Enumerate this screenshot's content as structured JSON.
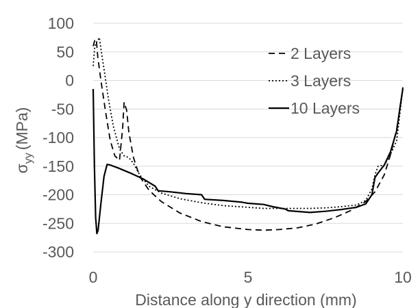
{
  "chart_data": {
    "type": "line",
    "title": "",
    "xlabel": "Distance along y direction (mm)",
    "ylabel": {
      "symbol": "σ",
      "subscript": "yy",
      "unit": "(MPa)"
    },
    "xlim": [
      0,
      10
    ],
    "ylim": [
      -300,
      100
    ],
    "xticks": [
      "0",
      "5",
      "10"
    ],
    "yticks": [
      "100",
      "50",
      "0",
      "-50",
      "-100",
      "-150",
      "-200",
      "-250",
      "-300"
    ],
    "grid": "horizontal",
    "legend_position": "top-right",
    "series": [
      {
        "name": "2 Layers",
        "style": "dashed",
        "color": "#000000",
        "points": [
          [
            0.0,
            60
          ],
          [
            0.05,
            70
          ],
          [
            0.1,
            72
          ],
          [
            0.15,
            40
          ],
          [
            0.25,
            0
          ],
          [
            0.4,
            -55
          ],
          [
            0.55,
            -105
          ],
          [
            0.7,
            -132
          ],
          [
            0.85,
            -140
          ],
          [
            0.95,
            -85
          ],
          [
            1.0,
            -38
          ],
          [
            1.08,
            -52
          ],
          [
            1.15,
            -90
          ],
          [
            1.3,
            -135
          ],
          [
            1.5,
            -168
          ],
          [
            1.8,
            -192
          ],
          [
            2.2,
            -212
          ],
          [
            2.8,
            -232
          ],
          [
            3.5,
            -247
          ],
          [
            4.2,
            -256
          ],
          [
            5.0,
            -261
          ],
          [
            5.5,
            -262
          ],
          [
            6.0,
            -261
          ],
          [
            6.6,
            -258
          ],
          [
            7.2,
            -251
          ],
          [
            7.8,
            -240
          ],
          [
            8.3,
            -228
          ],
          [
            8.8,
            -212
          ],
          [
            9.1,
            -195
          ],
          [
            9.4,
            -165
          ],
          [
            9.6,
            -130
          ],
          [
            9.8,
            -85
          ],
          [
            9.9,
            -50
          ],
          [
            10.0,
            -12
          ]
        ]
      },
      {
        "name": "3 Layers",
        "style": "dotted",
        "color": "#000000",
        "points": [
          [
            0.0,
            25
          ],
          [
            0.05,
            60
          ],
          [
            0.12,
            68
          ],
          [
            0.2,
            75
          ],
          [
            0.25,
            55
          ],
          [
            0.35,
            20
          ],
          [
            0.5,
            -35
          ],
          [
            0.65,
            -80
          ],
          [
            0.85,
            -120
          ],
          [
            1.0,
            -132
          ],
          [
            1.15,
            -135
          ],
          [
            1.3,
            -145
          ],
          [
            1.5,
            -165
          ],
          [
            1.8,
            -185
          ],
          [
            2.2,
            -197
          ],
          [
            2.8,
            -207
          ],
          [
            3.5,
            -214
          ],
          [
            4.2,
            -219
          ],
          [
            5.0,
            -222
          ],
          [
            5.5,
            -224
          ],
          [
            6.0,
            -224
          ],
          [
            6.5,
            -224
          ],
          [
            7.0,
            -224
          ],
          [
            7.5,
            -223
          ],
          [
            8.0,
            -221
          ],
          [
            8.5,
            -218
          ],
          [
            8.8,
            -210
          ],
          [
            9.0,
            -190
          ],
          [
            9.1,
            -165
          ],
          [
            9.2,
            -150
          ],
          [
            9.4,
            -148
          ],
          [
            9.6,
            -130
          ],
          [
            9.8,
            -105
          ],
          [
            9.9,
            -60
          ],
          [
            10.0,
            -13
          ]
        ]
      },
      {
        "name": "10 Layers",
        "style": "solid",
        "color": "#000000",
        "points": [
          [
            0.0,
            -15
          ],
          [
            0.04,
            -150
          ],
          [
            0.08,
            -240
          ],
          [
            0.12,
            -268
          ],
          [
            0.16,
            -262
          ],
          [
            0.25,
            -215
          ],
          [
            0.35,
            -168
          ],
          [
            0.45,
            -147
          ],
          [
            0.55,
            -148
          ],
          [
            0.8,
            -153
          ],
          [
            1.2,
            -162
          ],
          [
            1.6,
            -172
          ],
          [
            2.0,
            -185
          ],
          [
            2.1,
            -193
          ],
          [
            2.5,
            -195
          ],
          [
            3.0,
            -198
          ],
          [
            3.5,
            -200
          ],
          [
            3.6,
            -208
          ],
          [
            4.2,
            -210
          ],
          [
            4.8,
            -213
          ],
          [
            5.0,
            -215
          ],
          [
            5.5,
            -217
          ],
          [
            5.8,
            -221
          ],
          [
            6.2,
            -225
          ],
          [
            6.3,
            -228
          ],
          [
            7.0,
            -231
          ],
          [
            7.5,
            -229
          ],
          [
            8.0,
            -226
          ],
          [
            8.5,
            -222
          ],
          [
            8.8,
            -216
          ],
          [
            9.0,
            -200
          ],
          [
            9.1,
            -170
          ],
          [
            9.2,
            -162
          ],
          [
            9.4,
            -148
          ],
          [
            9.6,
            -125
          ],
          [
            9.8,
            -88
          ],
          [
            9.9,
            -50
          ],
          [
            10.0,
            -14
          ]
        ]
      }
    ]
  }
}
